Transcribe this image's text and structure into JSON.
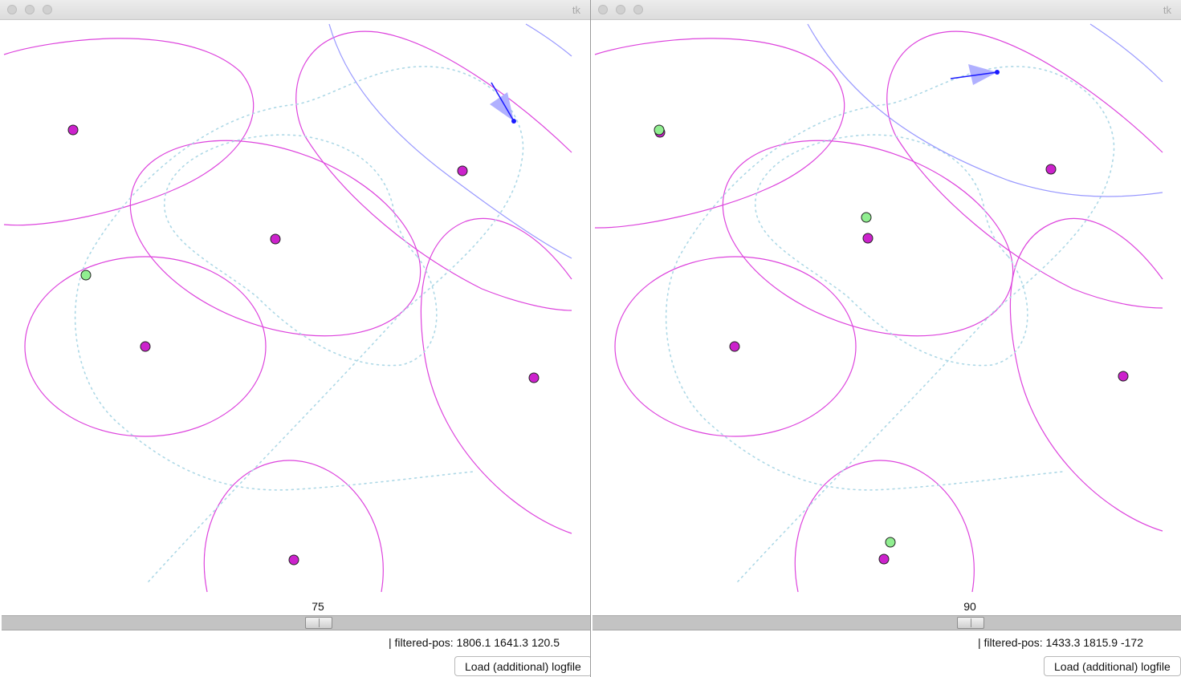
{
  "windows": [
    {
      "title": "tk",
      "slider": {
        "value": "75",
        "min": 0,
        "max": 150,
        "level": 0.5
      },
      "status": "| filtered-pos: 1806.1 1641.3 120.5",
      "load_button": "Load (additional) logfile"
    },
    {
      "title": "tk",
      "slider": {
        "value": "90",
        "min": 0,
        "max": 150,
        "level": 0.6
      },
      "status": "| filtered-pos: 1433.3 1815.9 -172",
      "load_button": "Load (additional) logfile"
    }
  ],
  "colors": {
    "landmark": "#cc22cc",
    "range_ellipse": "#dd44dd",
    "observation": "#90ee90",
    "trajectory": "#add8e6",
    "heading": "#1a1aff",
    "heading_cone": "#b0b0ff",
    "blue_curve": "#9999ff"
  },
  "icons": [
    "window-close-icon",
    "window-minimize-icon",
    "window-zoom-icon"
  ]
}
